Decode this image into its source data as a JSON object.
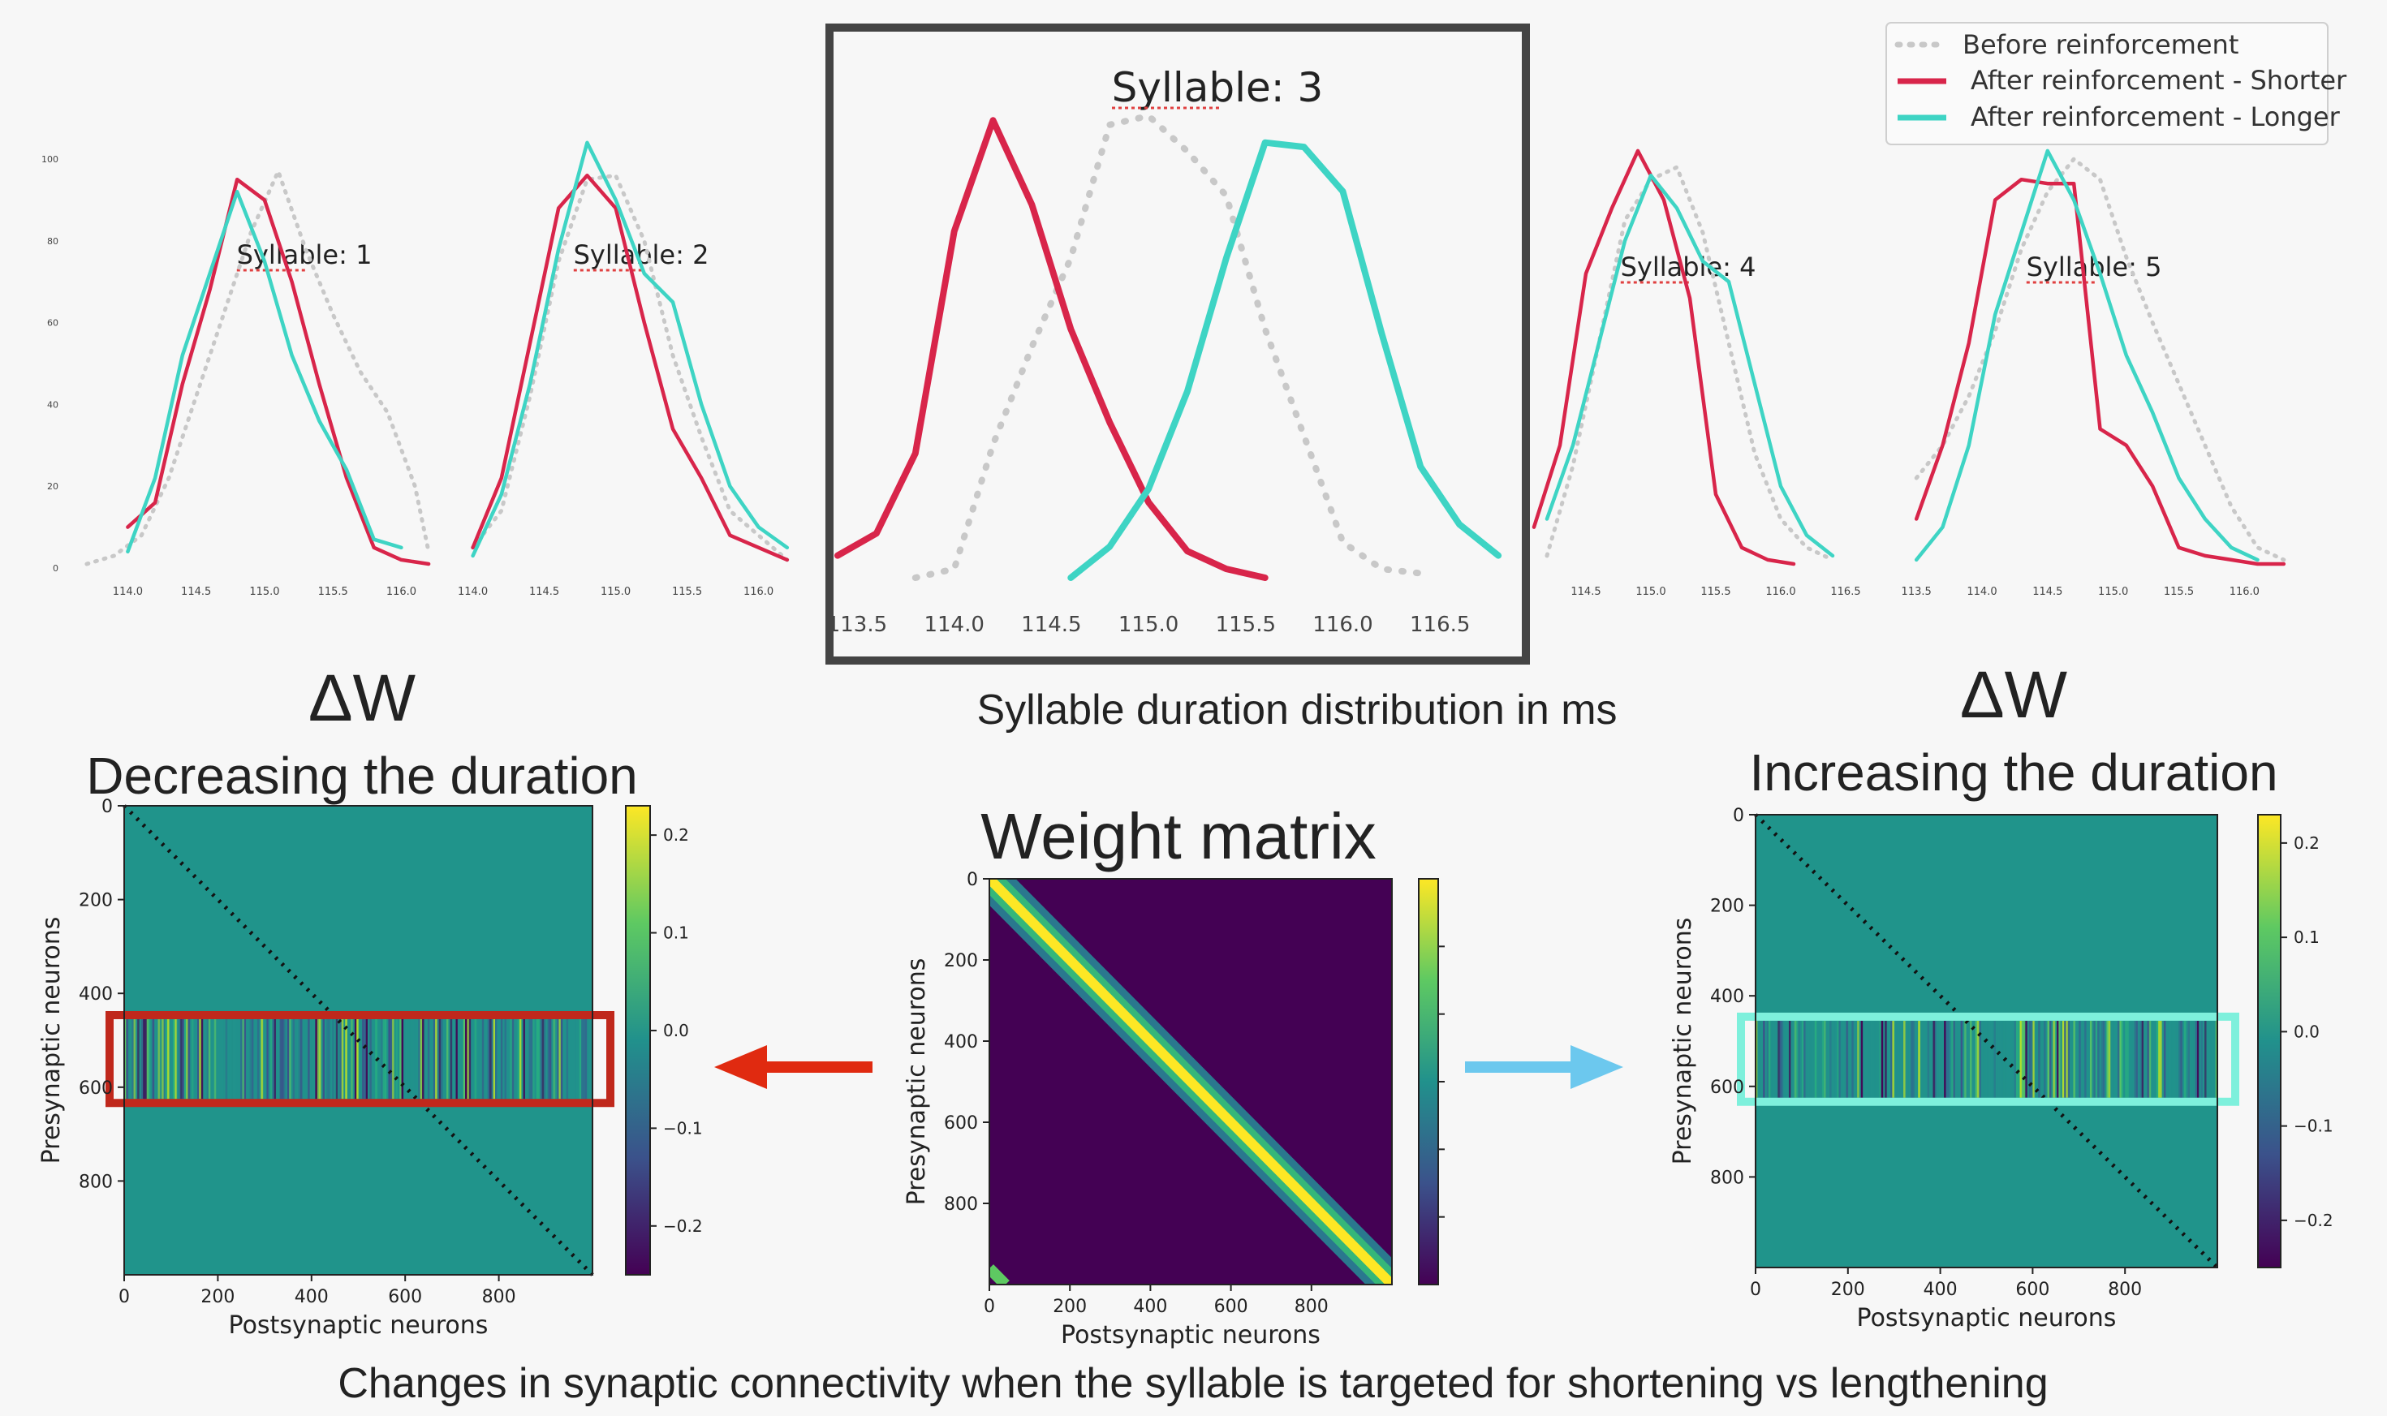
{
  "colors": {
    "before": "#c8c8c8",
    "shorter": "#d8254a",
    "longer": "#3ed4c4",
    "decrease_box": "#c0281c",
    "increase_box": "#7ef0dc",
    "arrow_left": "#e02a10",
    "arrow_right": "#6cc8ee",
    "dw_background": "#20948b",
    "weight_background": "#440154"
  },
  "legend": {
    "placement": "top-right",
    "items": [
      {
        "key": "before",
        "label": "Before reinforcement",
        "style": "dotted"
      },
      {
        "key": "shorter",
        "label": "After reinforcement - Shorter",
        "style": "solid"
      },
      {
        "key": "longer",
        "label": "After reinforcement - Longer",
        "style": "solid"
      }
    ]
  },
  "labels": {
    "dist_caption": "Syllable duration distribution in ms",
    "dw_left_symbol": "ΔW",
    "dw_left_title": "Decreasing the duration",
    "dw_right_symbol": "ΔW",
    "dw_right_title": "Increasing the duration",
    "weight_title": "Weight matrix",
    "bottom_caption": "Changes in synaptic connectivity when the syllable is targeted for shortening vs lengthening"
  },
  "chart_data": [
    {
      "type": "line",
      "title": "Syllable: 1",
      "yticks": [
        0,
        20,
        40,
        60,
        80,
        100
      ],
      "ylim": [
        0,
        100
      ],
      "xticks": [
        "114.0",
        "114.5",
        "115.0",
        "115.5",
        "116.0"
      ],
      "xlim": [
        113.6,
        116.3
      ],
      "series": [
        {
          "key": "before",
          "x": [
            113.7,
            113.9,
            114.1,
            114.3,
            114.5,
            114.7,
            114.9,
            115.1,
            115.3,
            115.5,
            115.7,
            115.9,
            116.1,
            116.2
          ],
          "y": [
            1,
            3,
            8,
            22,
            42,
            62,
            82,
            97,
            78,
            62,
            48,
            38,
            20,
            4
          ]
        },
        {
          "key": "shorter",
          "x": [
            114.0,
            114.2,
            114.4,
            114.6,
            114.8,
            115.0,
            115.2,
            115.4,
            115.6,
            115.8,
            116.0,
            116.2
          ],
          "y": [
            10,
            16,
            45,
            68,
            95,
            90,
            70,
            45,
            22,
            5,
            2,
            1
          ]
        },
        {
          "key": "longer",
          "x": [
            114.0,
            114.2,
            114.4,
            114.6,
            114.8,
            115.0,
            115.2,
            115.4,
            115.6,
            115.8,
            116.0
          ],
          "y": [
            4,
            22,
            52,
            72,
            92,
            75,
            52,
            36,
            24,
            7,
            5
          ]
        }
      ]
    },
    {
      "type": "line",
      "title": "Syllable: 2",
      "yticks": [],
      "ylim": [
        0,
        100
      ],
      "xticks": [
        "114.0",
        "114.5",
        "115.0",
        "115.5",
        "116.0"
      ],
      "xlim": [
        113.9,
        116.4
      ],
      "series": [
        {
          "key": "before",
          "x": [
            114.0,
            114.2,
            114.4,
            114.6,
            114.8,
            115.0,
            115.2,
            115.4,
            115.6,
            115.8,
            116.0,
            116.2
          ],
          "y": [
            5,
            14,
            42,
            75,
            95,
            96,
            80,
            52,
            32,
            14,
            8,
            2
          ]
        },
        {
          "key": "shorter",
          "x": [
            114.0,
            114.2,
            114.4,
            114.6,
            114.8,
            115.0,
            115.2,
            115.4,
            115.6,
            115.8,
            116.0,
            116.2
          ],
          "y": [
            5,
            22,
            55,
            88,
            96,
            88,
            60,
            34,
            22,
            8,
            5,
            2
          ]
        },
        {
          "key": "longer",
          "x": [
            114.0,
            114.2,
            114.4,
            114.6,
            114.8,
            115.0,
            115.2,
            115.4,
            115.6,
            115.8,
            116.0,
            116.2
          ],
          "y": [
            3,
            18,
            45,
            78,
            104,
            90,
            72,
            65,
            40,
            20,
            10,
            5
          ]
        }
      ]
    },
    {
      "type": "line",
      "title": "Syllable: 3",
      "yticks": [],
      "ylim": [
        0,
        110
      ],
      "xticks": [
        "113.5",
        "114.0",
        "114.5",
        "115.0",
        "115.5",
        "116.0",
        "116.5"
      ],
      "xlim": [
        113.4,
        116.9
      ],
      "series": [
        {
          "key": "before",
          "x": [
            113.8,
            114.0,
            114.2,
            114.4,
            114.6,
            114.8,
            115.0,
            115.2,
            115.4,
            115.6,
            115.8,
            116.0,
            116.2,
            116.4
          ],
          "y": [
            0,
            2,
            30,
            52,
            72,
            102,
            104,
            96,
            86,
            56,
            32,
            8,
            2,
            1
          ]
        },
        {
          "key": "shorter",
          "x": [
            113.4,
            113.6,
            113.8,
            114.0,
            114.2,
            114.4,
            114.6,
            114.8,
            115.0,
            115.2,
            115.4,
            115.6
          ],
          "y": [
            5,
            10,
            28,
            78,
            103,
            84,
            56,
            35,
            17,
            6,
            2,
            0
          ]
        },
        {
          "key": "longer",
          "x": [
            114.6,
            114.8,
            115.0,
            115.2,
            115.4,
            115.6,
            115.8,
            116.0,
            116.2,
            116.4,
            116.6,
            116.8
          ],
          "y": [
            0,
            7,
            20,
            42,
            72,
            98,
            97,
            87,
            55,
            25,
            12,
            5
          ]
        }
      ]
    },
    {
      "type": "line",
      "title": "Syllable: 4",
      "yticks": [],
      "ylim": [
        0,
        100
      ],
      "xticks": [
        "114.5",
        "115.0",
        "115.5",
        "116.0",
        "116.5"
      ],
      "xlim": [
        114.1,
        116.6
      ],
      "series": [
        {
          "key": "before",
          "x": [
            114.2,
            114.4,
            114.6,
            114.8,
            115.0,
            115.2,
            115.4,
            115.6,
            115.8,
            116.0,
            116.2,
            116.4
          ],
          "y": [
            3,
            25,
            55,
            85,
            95,
            98,
            82,
            55,
            28,
            12,
            5,
            2
          ]
        },
        {
          "key": "shorter",
          "x": [
            114.1,
            114.3,
            114.5,
            114.7,
            114.9,
            115.1,
            115.3,
            115.5,
            115.7,
            115.9,
            116.1
          ],
          "y": [
            10,
            30,
            72,
            88,
            102,
            90,
            66,
            18,
            5,
            2,
            1
          ]
        },
        {
          "key": "longer",
          "x": [
            114.2,
            114.4,
            114.6,
            114.8,
            115.0,
            115.2,
            115.4,
            115.6,
            115.8,
            116.0,
            116.2,
            116.4
          ],
          "y": [
            12,
            30,
            55,
            80,
            96,
            88,
            75,
            70,
            45,
            20,
            8,
            3
          ]
        }
      ]
    },
    {
      "type": "line",
      "title": "Syllable: 5",
      "yticks": [],
      "ylim": [
        0,
        100
      ],
      "xticks": [
        "113.5",
        "114.0",
        "114.5",
        "115.0",
        "115.5",
        "116.0"
      ],
      "xlim": [
        113.4,
        116.4
      ],
      "series": [
        {
          "key": "before",
          "x": [
            113.5,
            113.7,
            113.9,
            114.1,
            114.3,
            114.5,
            114.7,
            114.9,
            115.1,
            115.3,
            115.5,
            115.7,
            115.9,
            116.1,
            116.3
          ],
          "y": [
            22,
            30,
            42,
            58,
            78,
            92,
            100,
            95,
            76,
            60,
            45,
            30,
            15,
            5,
            2
          ]
        },
        {
          "key": "shorter",
          "x": [
            113.5,
            113.7,
            113.9,
            114.1,
            114.3,
            114.5,
            114.7,
            114.9,
            115.1,
            115.3,
            115.5,
            115.7,
            115.9,
            116.1,
            116.3
          ],
          "y": [
            12,
            30,
            55,
            90,
            95,
            94,
            94,
            34,
            30,
            20,
            5,
            3,
            2,
            1,
            1
          ]
        },
        {
          "key": "longer",
          "x": [
            113.5,
            113.7,
            113.9,
            114.1,
            114.3,
            114.5,
            114.7,
            114.9,
            115.1,
            115.3,
            115.5,
            115.7,
            115.9,
            116.1
          ],
          "y": [
            2,
            10,
            30,
            62,
            82,
            102,
            90,
            72,
            52,
            38,
            22,
            12,
            5,
            2
          ]
        }
      ]
    },
    {
      "type": "heatmap",
      "name": "dw-left",
      "xlabel": "Postsynaptic neurons",
      "ylabel": "Presynaptic neurons",
      "xticks": [
        0,
        200,
        400,
        600,
        800
      ],
      "yticks": [
        0,
        200,
        400,
        600,
        800
      ],
      "xlim": [
        0,
        1000
      ],
      "ylim": [
        0,
        1000
      ],
      "band_rows": [
        455,
        625
      ],
      "colorbar_ticks": [
        "0.2",
        "0.1",
        "0.0",
        "−0.1",
        "−0.2"
      ],
      "colorbar_range": [
        -0.25,
        0.23
      ]
    },
    {
      "type": "heatmap",
      "name": "weight",
      "xlabel": "Postsynaptic neurons",
      "ylabel": "Presynaptic neurons",
      "xticks": [
        0,
        200,
        400,
        600,
        800
      ],
      "yticks": [
        0,
        200,
        400,
        600,
        800
      ],
      "xlim": [
        0,
        1000
      ],
      "ylim": [
        0,
        1000
      ],
      "colorbar_ticks": []
    },
    {
      "type": "heatmap",
      "name": "dw-right",
      "xlabel": "Postsynaptic neurons",
      "ylabel": "Presynaptic neurons",
      "xticks": [
        0,
        200,
        400,
        600,
        800
      ],
      "yticks": [
        0,
        200,
        400,
        600,
        800
      ],
      "xlim": [
        0,
        1000
      ],
      "ylim": [
        0,
        1000
      ],
      "band_rows": [
        455,
        625
      ],
      "colorbar_ticks": [
        "0.2",
        "0.1",
        "0.0",
        "−0.1",
        "−0.2"
      ],
      "colorbar_range": [
        -0.25,
        0.23
      ]
    }
  ]
}
